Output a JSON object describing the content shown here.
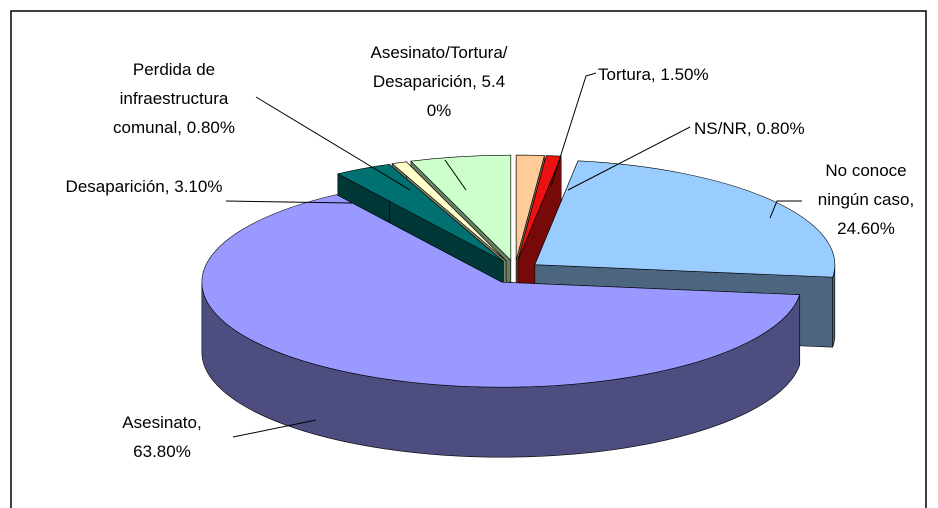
{
  "chart_data": {
    "type": "pie3d",
    "categories": [
      "Tortura",
      "NS/NR",
      "No conoce ningún caso",
      "Asesinato",
      "Desaparición",
      "Perdida de infraestructura comunal",
      "Asesinato/Tortura/Desaparición"
    ],
    "values": [
      1.5,
      0.8,
      24.6,
      63.8,
      3.1,
      0.8,
      5.4
    ],
    "value_labels": [
      "1.50%",
      "0.80%",
      "24.60%",
      "63.80%",
      "3.10%",
      "0.80%",
      "5.40%"
    ],
    "colors": [
      "#ffcc99",
      "#ee1111",
      "#99ccff",
      "#9999ff",
      "#007070",
      "#ffffcc",
      "#ccffcc"
    ]
  }
}
